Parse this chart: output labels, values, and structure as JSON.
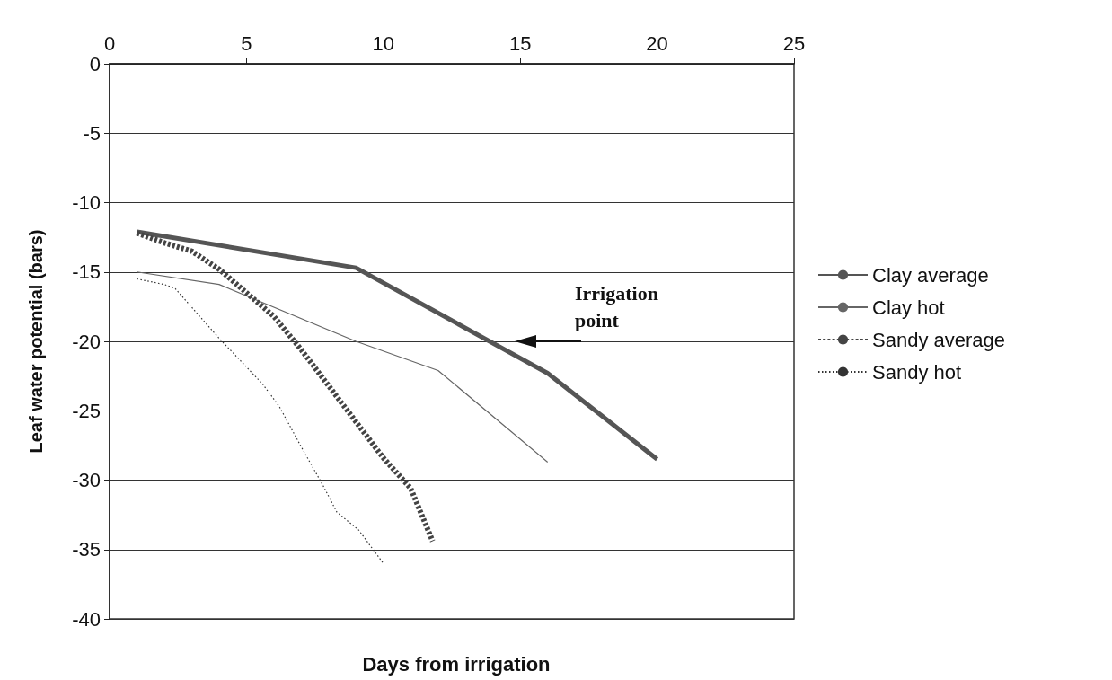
{
  "chart_data": {
    "type": "line",
    "xlabel": "Days from irrigation",
    "ylabel": "Leaf water potential (bars)",
    "xlim": [
      0,
      25
    ],
    "xticks": [
      0,
      5,
      10,
      15,
      20,
      25
    ],
    "ylim": [
      -40,
      0
    ],
    "yticks": [
      -40,
      -35,
      -30,
      -25,
      -20,
      -15,
      -10,
      -5,
      0
    ],
    "grid": "y",
    "legend": "right",
    "marker": "none",
    "annotations": [
      "Irrigation point"
    ],
    "series": [
      {
        "name": "Clay average",
        "color": "#555555",
        "line_style": "solid",
        "x": [
          1,
          9,
          16,
          20
        ],
        "values": [
          -12.1,
          -14.7,
          -22.3,
          -28.5
        ]
      },
      {
        "name": "Clay hot",
        "color": "#666666",
        "line_style": "solid",
        "x": [
          1,
          4,
          9,
          12,
          16
        ],
        "values": [
          -15.0,
          -15.9,
          -20.0,
          -22.1,
          -28.7
        ]
      },
      {
        "name": "Sandy average",
        "color": "#444444",
        "line_style": "dashed",
        "x": [
          1,
          2,
          3,
          4,
          5,
          6,
          7,
          8,
          9,
          10,
          11,
          11.8
        ],
        "values": [
          -12.2,
          -12.9,
          -13.5,
          -14.8,
          -16.5,
          -18.2,
          -20.6,
          -23.2,
          -25.8,
          -28.4,
          -30.6,
          -34.4
        ]
      },
      {
        "name": "Sandy hot",
        "color": "#333333",
        "line_style": "dotted",
        "x": [
          1,
          2,
          2.4,
          4.1,
          4.4,
          5.6,
          6.2,
          7.0,
          7.8,
          8.3,
          9.1,
          10
        ],
        "values": [
          -15.5,
          -15.9,
          -16.2,
          -20.0,
          -20.6,
          -23.1,
          -24.7,
          -27.6,
          -30.4,
          -32.3,
          -33.6,
          -36.0
        ]
      }
    ]
  }
}
